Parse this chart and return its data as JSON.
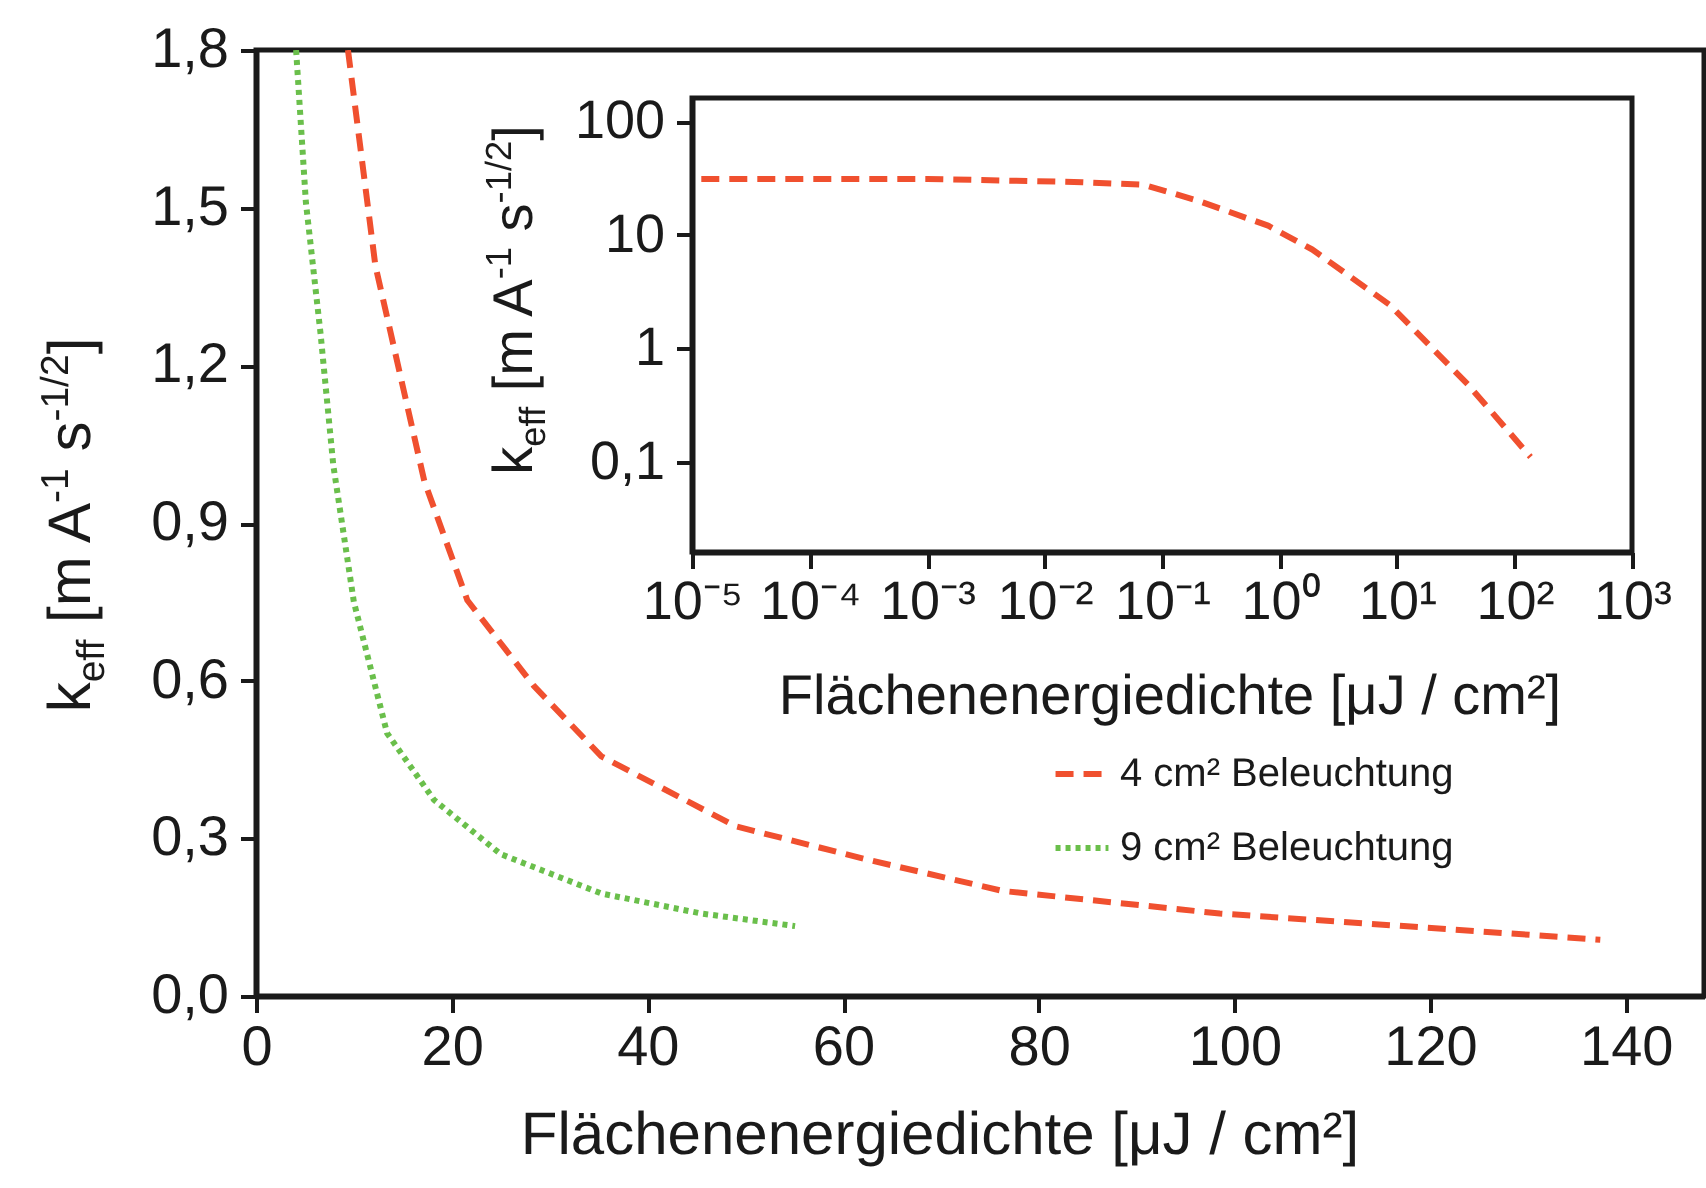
{
  "chart_data": [
    {
      "type": "line",
      "xlabel": "Flächenenergiedichte [μJ / cm²]",
      "ylabel": "k$_{eff}$ [m A$^{-1}$ s$^{-1/2}$]",
      "xlim": [
        0,
        148
      ],
      "xticks": [
        0,
        20,
        40,
        60,
        80,
        100,
        120,
        140
      ],
      "ylim": [
        0,
        1.8
      ],
      "yticks": [
        {
          "value": 0,
          "label": "0,0"
        },
        {
          "value": 0.3,
          "label": "0,3"
        },
        {
          "value": 0.6,
          "label": "0,6"
        },
        {
          "value": 0.9,
          "label": "0,9"
        },
        {
          "value": 1.2,
          "label": "1,2"
        },
        {
          "value": 1.5,
          "label": "1,5"
        },
        {
          "value": 1.8,
          "label": "1,8"
        }
      ],
      "grid": false,
      "legend": "bottom right",
      "series": [
        {
          "name": "4 cm² Beleuchtung",
          "color": "#f0502f",
          "line_style": "dashed",
          "x": [
            9.4,
            12.2,
            17.2,
            21.6,
            28.4,
            35.3,
            49,
            62.6,
            76.3,
            98.5,
            117.3,
            137.4
          ],
          "values": [
            1.8,
            1.39,
            0.98,
            0.753,
            0.59,
            0.456,
            0.323,
            0.259,
            0.2,
            0.157,
            0.133,
            0.107
          ]
        },
        {
          "name": "9 cm² Beleuchtung",
          "color": "#6abf4b",
          "line_style": "dotted",
          "x": [
            4.1,
            5.1,
            6.6,
            7.9,
            10,
            13.4,
            18.2,
            25,
            35.3,
            45.5,
            55.1
          ],
          "values": [
            1.8,
            1.51,
            1.26,
            1.01,
            0.75,
            0.5,
            0.373,
            0.27,
            0.195,
            0.157,
            0.133
          ]
        }
      ]
    },
    {
      "type": "line",
      "xlabel": "Flächenenergiedichte [μJ / cm²]",
      "ylabel": "k$_{eff}$ [m A$^{-1}$ s$^{-1/2}$]",
      "log": "xy",
      "xlim": [
        1e-05,
        1000
      ],
      "xticks": [
        {
          "value": 1e-05,
          "label": "10⁻⁵"
        },
        {
          "value": 0.0001,
          "label": "10⁻⁴"
        },
        {
          "value": 0.001,
          "label": "10⁻³"
        },
        {
          "value": 0.01,
          "label": "10⁻²"
        },
        {
          "value": 0.1,
          "label": "10⁻¹"
        },
        {
          "value": 1,
          "label": "10⁰"
        },
        {
          "value": 10,
          "label": "10¹"
        },
        {
          "value": 100,
          "label": "10²"
        },
        {
          "value": 1000,
          "label": "10³"
        }
      ],
      "ylim": [
        0.016,
        160
      ],
      "yticks": [
        {
          "value": 0.1,
          "label": "0,1"
        },
        1,
        10,
        100
      ],
      "grid": false,
      "series": [
        {
          "color": "#f0502f",
          "line_style": "dashed",
          "x": [
            1.2e-05,
            0.001,
            0.021,
            0.07,
            0.2,
            0.8,
            1.9,
            8.7,
            40,
            137
          ],
          "values": [
            31,
            31,
            29,
            27.5,
            20,
            12,
            7.4,
            2.4,
            0.48,
            0.11
          ]
        }
      ]
    }
  ]
}
